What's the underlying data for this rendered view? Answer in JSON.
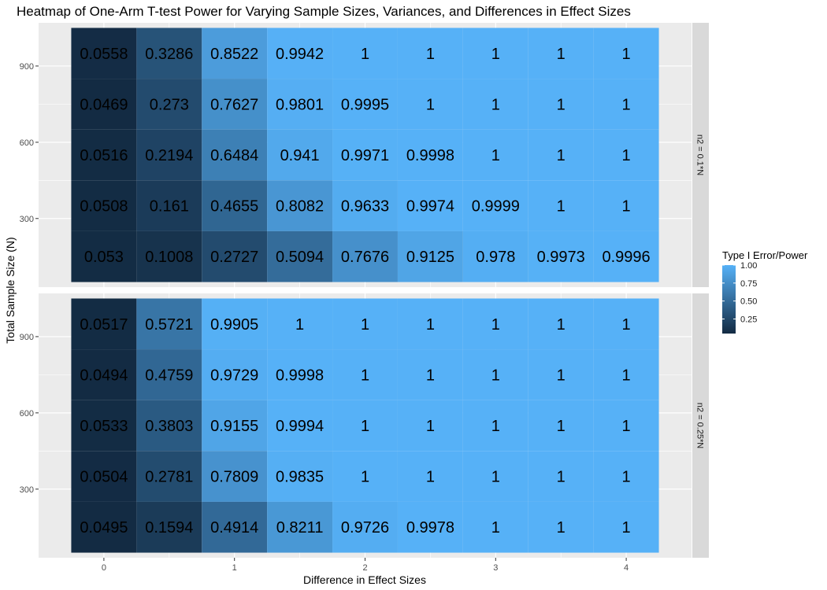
{
  "chart_data": {
    "type": "heatmap",
    "title": "Heatmap of One-Arm T-test Power for Varying Sample Sizes, Variances, and Differences in Effect Sizes",
    "xlabel": "Difference in Effect Sizes",
    "ylabel": "Total Sample Size (N)",
    "x_values": [
      0,
      0.5,
      1,
      1.5,
      2,
      2.5,
      3,
      3.5,
      4
    ],
    "x_ticks": [
      0,
      1,
      2,
      3,
      4
    ],
    "xlim": [
      -0.5,
      4.5
    ],
    "y_values": [
      150,
      350,
      550,
      750,
      950
    ],
    "y_ticks": [
      300,
      600,
      900
    ],
    "ylim": [
      30,
      1070
    ],
    "grid": true,
    "panels": [
      {
        "strip_label": "n2 = 0.1*N",
        "rows": [
          {
            "y": 950,
            "values": [
              "0.0558",
              "0.3286",
              "0.8522",
              "0.9942",
              "1",
              "1",
              "1",
              "1",
              "1"
            ]
          },
          {
            "y": 750,
            "values": [
              "0.0469",
              "0.273",
              "0.7627",
              "0.9801",
              "0.9995",
              "1",
              "1",
              "1",
              "1"
            ]
          },
          {
            "y": 550,
            "values": [
              "0.0516",
              "0.2194",
              "0.6484",
              "0.941",
              "0.9971",
              "0.9998",
              "1",
              "1",
              "1"
            ]
          },
          {
            "y": 350,
            "values": [
              "0.0508",
              "0.161",
              "0.4655",
              "0.8082",
              "0.9633",
              "0.9974",
              "0.9999",
              "1",
              "1"
            ]
          },
          {
            "y": 150,
            "values": [
              "0.053",
              "0.1008",
              "0.2727",
              "0.5094",
              "0.7676",
              "0.9125",
              "0.978",
              "0.9973",
              "0.9996"
            ]
          }
        ]
      },
      {
        "strip_label": "n2 = 0.25*N",
        "rows": [
          {
            "y": 950,
            "values": [
              "0.0517",
              "0.5721",
              "0.9905",
              "1",
              "1",
              "1",
              "1",
              "1",
              "1"
            ]
          },
          {
            "y": 750,
            "values": [
              "0.0494",
              "0.4759",
              "0.9729",
              "0.9998",
              "1",
              "1",
              "1",
              "1",
              "1"
            ]
          },
          {
            "y": 550,
            "values": [
              "0.0533",
              "0.3803",
              "0.9155",
              "0.9994",
              "1",
              "1",
              "1",
              "1",
              "1"
            ]
          },
          {
            "y": 350,
            "values": [
              "0.0504",
              "0.2781",
              "0.7809",
              "0.9835",
              "1",
              "1",
              "1",
              "1",
              "1"
            ]
          },
          {
            "y": 150,
            "values": [
              "0.0495",
              "0.1594",
              "0.4914",
              "0.8211",
              "0.9726",
              "0.9978",
              "1",
              "1",
              "1"
            ]
          }
        ]
      }
    ],
    "legend": {
      "title": "Type I Error/Power",
      "placement": "right",
      "ticks": [
        "0.25",
        "0.50",
        "0.75",
        "1.00"
      ],
      "tick_values": [
        0.25,
        0.5,
        0.75,
        1.0
      ],
      "range": [
        0.0469,
        1.0
      ],
      "low_color": "#132B43",
      "high_color": "#56B1F7"
    },
    "colors": {
      "panel_bg": "#EBEBEB",
      "grid_major": "#FFFFFF",
      "strip_bg": "#D9D9D9"
    }
  }
}
